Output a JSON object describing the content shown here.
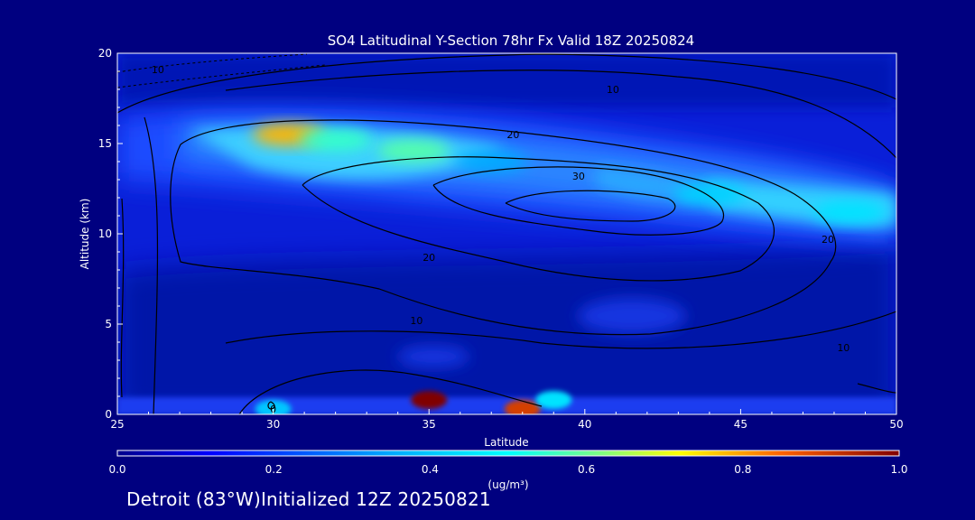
{
  "chart_data": {
    "type": "heatmap",
    "title": "SO4 Latitudinal Y-Section 78hr  Fx Valid 18Z 20250824",
    "xlabel": "Latitude",
    "ylabel": "Altitude (km)",
    "xlim": [
      25,
      50
    ],
    "ylim": [
      0,
      20
    ],
    "x_ticks": [
      25,
      30,
      35,
      40,
      45,
      50
    ],
    "y_ticks": [
      0,
      5,
      10,
      15,
      20
    ],
    "colorbar": {
      "unit": "(ug/m³)",
      "range": [
        0.0,
        1.0
      ],
      "tick_values": [
        0.0,
        0.2,
        0.4,
        0.6,
        0.8,
        1.0
      ],
      "tick_labels": [
        "0.0",
        "0.2",
        "0.4",
        "0.6",
        "0.8",
        "1.0"
      ]
    },
    "plumes": [
      {
        "lat": 30.5,
        "alt": 15.5,
        "value": 0.78
      },
      {
        "lat": 34.5,
        "alt": 14.6,
        "value": 0.58
      },
      {
        "lat": 32.0,
        "alt": 15.2,
        "value": 0.55
      },
      {
        "lat": 37.0,
        "alt": 14.0,
        "value": 0.35
      },
      {
        "lat": 44.0,
        "alt": 12.2,
        "value": 0.42
      },
      {
        "lat": 48.5,
        "alt": 11.2,
        "value": 0.45
      },
      {
        "lat": 35.0,
        "alt": 0.8,
        "value": 1.0
      },
      {
        "lat": 38.0,
        "alt": 0.3,
        "value": 0.9
      },
      {
        "lat": 39.0,
        "alt": 0.8,
        "value": 0.45
      },
      {
        "lat": 30.0,
        "alt": 0.3,
        "value": 0.4
      }
    ],
    "contour_labels": [
      {
        "text": "10",
        "lat": 26.3,
        "alt": 19.1
      },
      {
        "text": "10",
        "lat": 40.9,
        "alt": 18.0
      },
      {
        "text": "20",
        "lat": 37.7,
        "alt": 15.5
      },
      {
        "text": "30",
        "lat": 39.8,
        "alt": 13.2
      },
      {
        "text": "20",
        "lat": 35.0,
        "alt": 8.7
      },
      {
        "text": "10",
        "lat": 34.6,
        "alt": 5.2
      },
      {
        "text": "10",
        "lat": 48.3,
        "alt": 3.7
      },
      {
        "text": "20",
        "lat": 47.8,
        "alt": 9.7
      },
      {
        "text": "0",
        "lat": 30.0,
        "alt": 0.3
      }
    ]
  },
  "footer_text": "Detroit (83°W)Initialized 12Z 20250821"
}
